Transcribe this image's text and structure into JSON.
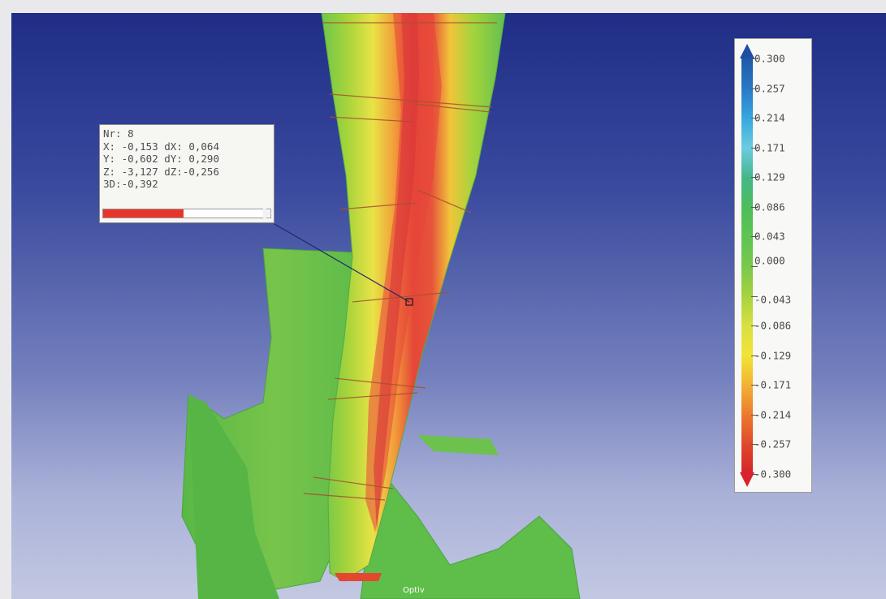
{
  "probe": {
    "rows": [
      "Nr: 8",
      "X: -0,153 dX: 0,064",
      "Y: -0,602 dY: 0,290",
      "Z: -3,127 dZ:-0,256",
      "3D:-0,392"
    ],
    "deviation_3d": -0.392,
    "deviation_fraction": 0.48
  },
  "legend": {
    "labels": [
      "0.300",
      "0.257",
      "0.214",
      "0.171",
      "0.129",
      "0.086",
      "0.043",
      "0.000",
      "-0.043",
      "-0.086",
      "-0.129",
      "-0.171",
      "-0.214",
      "-0.257",
      "-0.300"
    ],
    "colors": [
      "#1f5aa8",
      "#2a78c7",
      "#36a7de",
      "#6ccbe0",
      "#42b88a",
      "#4cbe5a",
      "#5ec453",
      "#79c84c",
      "#a7d33f",
      "#d8e042",
      "#f2e436",
      "#f2b233",
      "#ec7a2e",
      "#e0482b",
      "#d4232a"
    ]
  },
  "footer": {
    "label": "Optiv"
  }
}
